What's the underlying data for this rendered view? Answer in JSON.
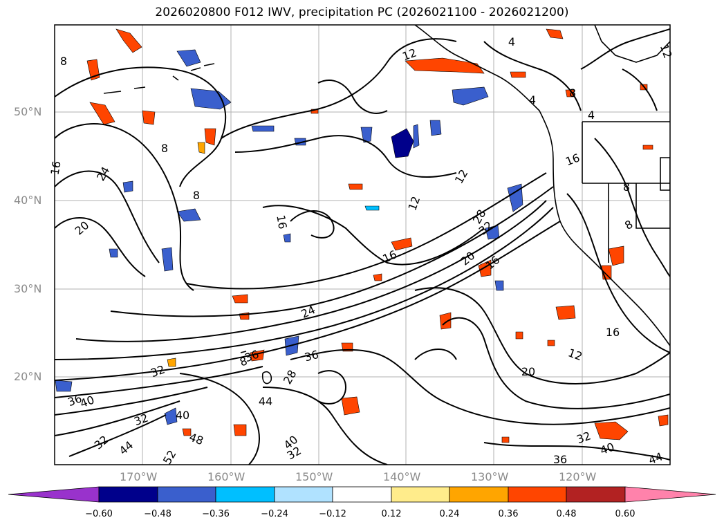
{
  "title": "2026020800 F012 IWV, precipitation PC (2026021100 - 2026021200)",
  "lat_labels": [
    "50°N",
    "40°N",
    "30°N",
    "20°N"
  ],
  "lon_labels": [
    "170°W",
    "160°W",
    "150°W",
    "140°W",
    "130°W",
    "120°W"
  ],
  "colorbar": {
    "ticks": [
      "−0.60",
      "−0.48",
      "−0.36",
      "−0.24",
      "−0.12",
      "0.12",
      "0.24",
      "0.36",
      "0.48",
      "0.60"
    ],
    "colors": [
      "#9932cc",
      "#00008b",
      "#3a5fcd",
      "#00bfff",
      "#b0e2ff",
      "#ffffff",
      "#ffec8b",
      "#ffa500",
      "#ff4500",
      "#b22222",
      "#ff82ab"
    ]
  },
  "contour_labels": [
    {
      "text": "8"
    },
    {
      "text": "12"
    },
    {
      "text": "4"
    },
    {
      "text": "12"
    },
    {
      "text": "4"
    },
    {
      "text": "8"
    },
    {
      "text": "4"
    },
    {
      "text": "8"
    },
    {
      "text": "24"
    },
    {
      "text": "16"
    },
    {
      "text": "8"
    },
    {
      "text": "20"
    },
    {
      "text": "12"
    },
    {
      "text": "12"
    },
    {
      "text": "16"
    },
    {
      "text": "16"
    },
    {
      "text": "8"
    },
    {
      "text": "8"
    },
    {
      "text": "28"
    },
    {
      "text": "32"
    },
    {
      "text": "16"
    },
    {
      "text": "20"
    },
    {
      "text": "16"
    },
    {
      "text": "24"
    },
    {
      "text": "16"
    },
    {
      "text": "36"
    },
    {
      "text": "8"
    },
    {
      "text": "12"
    },
    {
      "text": "20"
    },
    {
      "text": "32"
    },
    {
      "text": "36"
    },
    {
      "text": "36"
    },
    {
      "text": "40"
    },
    {
      "text": "44"
    },
    {
      "text": "28"
    },
    {
      "text": "40"
    },
    {
      "text": "32"
    },
    {
      "text": "48"
    },
    {
      "text": "44"
    },
    {
      "text": "32"
    },
    {
      "text": "52"
    },
    {
      "text": "40"
    },
    {
      "text": "32"
    },
    {
      "text": "32"
    },
    {
      "text": "40"
    },
    {
      "text": "36"
    },
    {
      "text": "44"
    }
  ]
}
